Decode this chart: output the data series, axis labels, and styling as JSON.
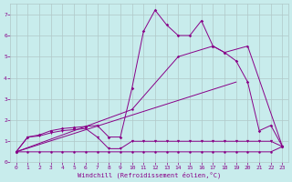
{
  "xlabel": "Windchill (Refroidissement éolien,°C)",
  "bg_color": "#c8ecec",
  "grid_color": "#b0c8c8",
  "line_color": "#880088",
  "xlim": [
    -0.5,
    23.5
  ],
  "ylim": [
    0,
    7.5
  ],
  "xticks": [
    0,
    1,
    2,
    3,
    4,
    5,
    6,
    7,
    8,
    9,
    10,
    11,
    12,
    13,
    14,
    15,
    16,
    17,
    18,
    19,
    20,
    21,
    22,
    23
  ],
  "yticks": [
    0,
    1,
    2,
    3,
    4,
    5,
    6,
    7
  ],
  "line1_x": [
    0,
    1,
    2,
    3,
    4,
    5,
    6,
    7,
    8,
    9,
    10,
    11,
    12,
    13,
    14,
    15,
    16,
    17,
    18,
    19,
    20,
    21,
    22,
    23
  ],
  "line1_y": [
    0.5,
    0.5,
    0.5,
    0.5,
    0.5,
    0.5,
    0.5,
    0.5,
    0.5,
    0.5,
    0.5,
    0.5,
    0.5,
    0.5,
    0.5,
    0.5,
    0.5,
    0.5,
    0.5,
    0.5,
    0.5,
    0.5,
    0.5,
    0.75
  ],
  "line2_x": [
    0,
    1,
    2,
    3,
    4,
    5,
    6,
    7,
    8,
    9,
    10,
    11,
    12,
    13,
    14,
    15,
    16,
    17,
    18,
    19,
    20,
    21,
    22,
    23
  ],
  "line2_y": [
    0.5,
    1.2,
    1.25,
    1.4,
    1.5,
    1.55,
    1.6,
    1.2,
    0.65,
    0.65,
    1.0,
    1.0,
    1.0,
    1.0,
    1.0,
    1.0,
    1.0,
    1.0,
    1.0,
    1.0,
    1.0,
    1.0,
    1.0,
    0.75
  ],
  "line3_x": [
    0,
    1,
    2,
    3,
    4,
    5,
    6,
    7,
    8,
    9,
    10,
    11,
    12,
    13,
    14,
    15,
    16,
    17,
    18,
    19,
    20,
    21,
    22,
    23
  ],
  "line3_y": [
    0.5,
    1.2,
    1.3,
    1.5,
    1.6,
    1.65,
    1.7,
    1.75,
    1.2,
    1.2,
    3.5,
    6.2,
    7.2,
    6.5,
    6.0,
    6.0,
    6.7,
    5.5,
    5.2,
    4.8,
    3.8,
    1.5,
    1.75,
    0.75
  ],
  "line4_x": [
    0,
    19
  ],
  "line4_y": [
    0.5,
    3.8
  ],
  "line5_x": [
    0,
    10,
    14,
    17,
    18,
    20,
    23
  ],
  "line5_y": [
    0.5,
    2.5,
    5.0,
    5.5,
    5.2,
    5.5,
    0.75
  ]
}
